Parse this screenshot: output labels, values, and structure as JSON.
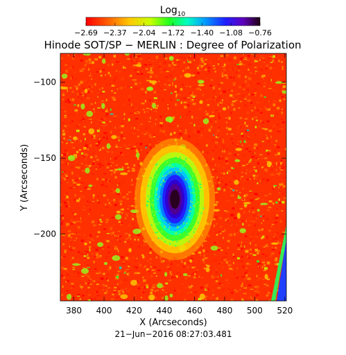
{
  "chart_data": {
    "type": "heatmap",
    "title": "Hinode SOT/SP − MERLIN : Degree of Polarization",
    "colorbar": {
      "label_main": "Log",
      "label_sub": "10",
      "ticks": [
        "−2.69",
        "−2.37",
        "−2.04",
        "−1.72",
        "−1.40",
        "−1.08",
        "−0.76"
      ],
      "range": [
        -2.69,
        -0.76
      ]
    },
    "xlabel": "X (Arcseconds)",
    "ylabel": "Y (Arcseconds)",
    "xlim": [
      371,
      521
    ],
    "ylim": [
      -244,
      -81
    ],
    "xticks": [
      "380",
      "400",
      "420",
      "440",
      "460",
      "480",
      "500",
      "520"
    ],
    "yticks": [
      "−100",
      "−150",
      "−200"
    ],
    "xtick_values": [
      380,
      400,
      420,
      440,
      460,
      480,
      500,
      520
    ],
    "ytick_values": [
      -100,
      -150,
      -200
    ],
    "features": {
      "spot_center": [
        447,
        -177
      ],
      "spot_core_value": -0.76,
      "background_value": -2.65
    },
    "footer": "21−Jun−2016 08:27:03.481"
  }
}
